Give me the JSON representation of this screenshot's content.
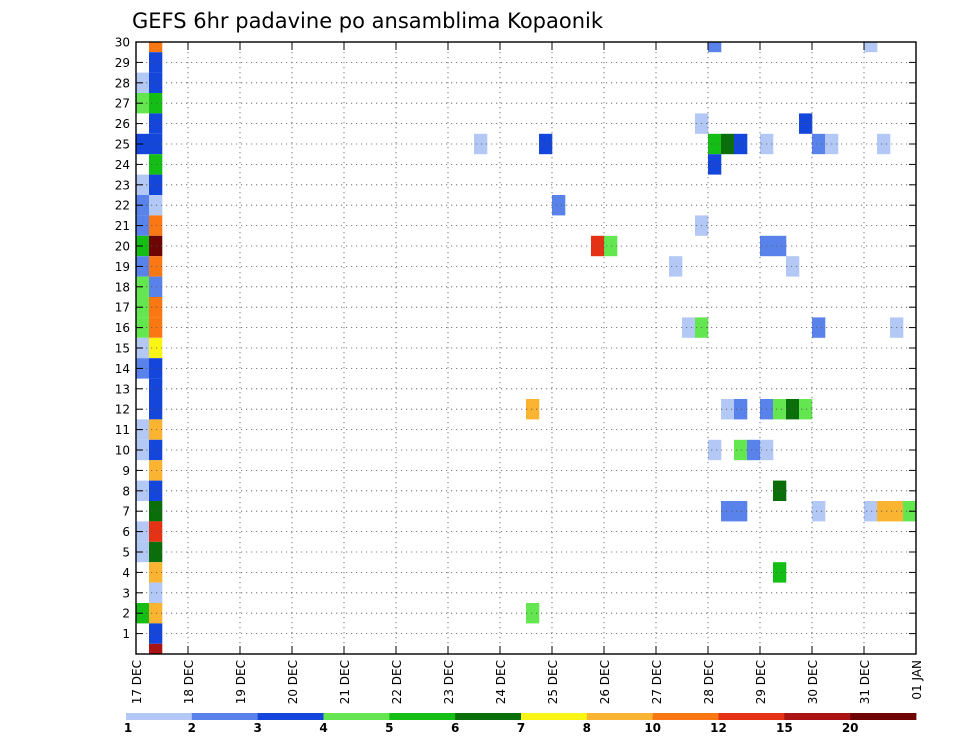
{
  "chart_data": {
    "type": "heatmap",
    "title": "GEFS 6hr padavine po ansamblima Kopaonik",
    "xlabel": "",
    "ylabel": "",
    "x_tick_labels": [
      "17 DEC",
      "18 DEC",
      "19 DEC",
      "20 DEC",
      "21 DEC",
      "22 DEC",
      "23 DEC",
      "24 DEC",
      "25 DEC",
      "26 DEC",
      "27 DEC",
      "28 DEC",
      "29 DEC",
      "30 DEC",
      "31 DEC",
      "01 JAN"
    ],
    "x_range_days": [
      0,
      15
    ],
    "step_hours": 6,
    "y_tick_labels": [
      "1",
      "2",
      "3",
      "4",
      "5",
      "6",
      "7",
      "8",
      "9",
      "10",
      "11",
      "12",
      "13",
      "14",
      "15",
      "16",
      "17",
      "18",
      "19",
      "20",
      "21",
      "22",
      "23",
      "24",
      "25",
      "26",
      "27",
      "28",
      "29",
      "30"
    ],
    "y_range": [
      0,
      30
    ],
    "grid": true,
    "colorbar": {
      "placement": "bottom",
      "labels": [
        "1",
        "2",
        "3",
        "4",
        "5",
        "6",
        "7",
        "8",
        "10",
        "12",
        "15",
        "20"
      ],
      "colors": [
        "#b4c8f5",
        "#5a82eb",
        "#1446dc",
        "#64e650",
        "#14be14",
        "#0a6e0a",
        "#faf514",
        "#fab432",
        "#fa7814",
        "#e63214",
        "#aa1414",
        "#6e0505"
      ]
    },
    "cells_note": "each cell: [member 1-30, time step index (6h steps from 17 DEC 00Z), colour class 0-11]",
    "cells": [
      [
        30,
        1,
        8
      ],
      [
        29,
        1,
        2
      ],
      [
        28,
        0,
        0
      ],
      [
        28,
        1,
        2
      ],
      [
        27,
        0,
        3
      ],
      [
        27,
        1,
        4
      ],
      [
        26,
        1,
        2
      ],
      [
        25,
        0,
        2
      ],
      [
        25,
        1,
        2
      ],
      [
        24,
        1,
        4
      ],
      [
        23,
        0,
        0
      ],
      [
        23,
        1,
        2
      ],
      [
        22,
        0,
        1
      ],
      [
        22,
        1,
        0
      ],
      [
        21,
        0,
        1
      ],
      [
        21,
        1,
        8
      ],
      [
        20,
        0,
        4
      ],
      [
        20,
        1,
        11
      ],
      [
        19,
        0,
        1
      ],
      [
        19,
        1,
        8
      ],
      [
        18,
        0,
        3
      ],
      [
        18,
        1,
        1
      ],
      [
        17,
        0,
        3
      ],
      [
        17,
        1,
        8
      ],
      [
        16,
        0,
        3
      ],
      [
        16,
        1,
        8
      ],
      [
        15,
        0,
        0
      ],
      [
        15,
        1,
        6
      ],
      [
        14,
        0,
        1
      ],
      [
        14,
        1,
        2
      ],
      [
        13,
        1,
        2
      ],
      [
        12,
        1,
        2
      ],
      [
        11,
        0,
        0
      ],
      [
        11,
        1,
        7
      ],
      [
        10,
        0,
        0
      ],
      [
        10,
        1,
        2
      ],
      [
        9,
        1,
        7
      ],
      [
        8,
        0,
        0
      ],
      [
        8,
        1,
        2
      ],
      [
        7,
        1,
        5
      ],
      [
        6,
        0,
        0
      ],
      [
        6,
        1,
        9
      ],
      [
        5,
        0,
        0
      ],
      [
        5,
        1,
        5
      ],
      [
        4,
        1,
        7
      ],
      [
        3,
        1,
        0
      ],
      [
        2,
        0,
        4
      ],
      [
        2,
        1,
        7
      ],
      [
        1,
        1,
        2
      ],
      [
        0,
        1,
        10
      ],
      [
        30,
        44,
        1
      ],
      [
        30,
        56,
        0
      ],
      [
        26,
        43,
        0
      ],
      [
        26,
        51,
        2
      ],
      [
        25,
        26,
        0
      ],
      [
        25,
        31,
        2
      ],
      [
        25,
        44,
        4
      ],
      [
        25,
        45,
        5
      ],
      [
        25,
        46,
        2
      ],
      [
        25,
        48,
        0
      ],
      [
        25,
        52,
        1
      ],
      [
        25,
        53,
        0
      ],
      [
        25,
        57,
        0
      ],
      [
        24,
        44,
        2
      ],
      [
        22,
        32,
        1
      ],
      [
        21,
        43,
        0
      ],
      [
        20,
        35,
        9
      ],
      [
        20,
        36,
        3
      ],
      [
        20,
        48,
        1
      ],
      [
        20,
        49,
        1
      ],
      [
        19,
        41,
        0
      ],
      [
        19,
        50,
        0
      ],
      [
        16,
        42,
        0
      ],
      [
        16,
        43,
        3
      ],
      [
        16,
        52,
        1
      ],
      [
        16,
        58,
        0
      ],
      [
        12,
        30,
        7
      ],
      [
        12,
        45,
        0
      ],
      [
        12,
        46,
        1
      ],
      [
        12,
        48,
        1
      ],
      [
        12,
        49,
        3
      ],
      [
        12,
        50,
        5
      ],
      [
        12,
        51,
        3
      ],
      [
        10,
        44,
        0
      ],
      [
        10,
        46,
        3
      ],
      [
        10,
        47,
        1
      ],
      [
        10,
        48,
        0
      ],
      [
        8,
        49,
        5
      ],
      [
        7,
        45,
        1
      ],
      [
        7,
        46,
        1
      ],
      [
        7,
        52,
        0
      ],
      [
        7,
        56,
        0
      ],
      [
        7,
        57,
        7
      ],
      [
        7,
        58,
        7
      ],
      [
        7,
        59,
        3
      ],
      [
        4,
        49,
        4
      ],
      [
        2,
        30,
        3
      ]
    ]
  }
}
